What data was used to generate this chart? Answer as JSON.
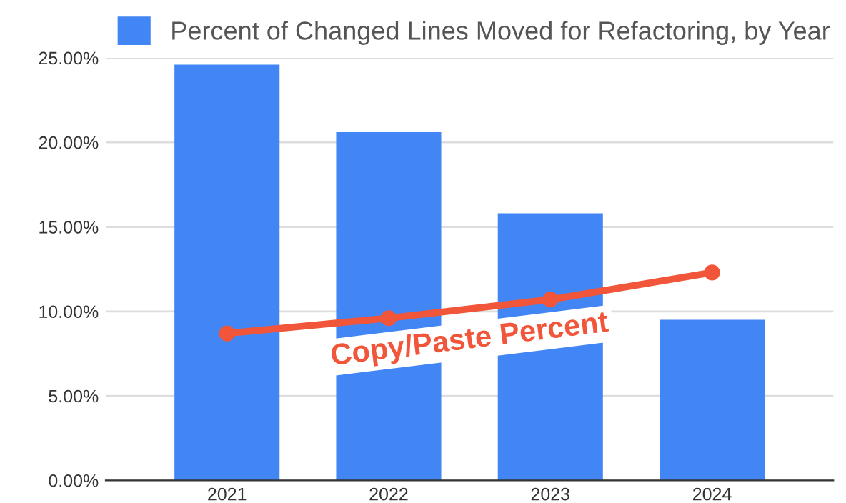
{
  "chart_data": {
    "type": "bar",
    "categories": [
      "2021",
      "2022",
      "2023",
      "2024"
    ],
    "series": [
      {
        "name": "Percent of Changed Lines Moved for Refactoring, by Year",
        "color": "#4285f4",
        "values": [
          24.6,
          20.6,
          15.8,
          9.5
        ]
      },
      {
        "name": "Copy/Paste Percent",
        "type": "line",
        "color": "#f2563a",
        "values": [
          8.7,
          9.6,
          10.7,
          12.3
        ]
      }
    ],
    "ylim": [
      0,
      25
    ],
    "yticks": [
      {
        "value": 0,
        "label": "0.00%"
      },
      {
        "value": 5,
        "label": "5.00%"
      },
      {
        "value": 10,
        "label": "10.00%"
      },
      {
        "value": 15,
        "label": "15.00%"
      },
      {
        "value": 20,
        "label": "20.00%"
      },
      {
        "value": 25,
        "label": "25.00%"
      }
    ],
    "grid": "y",
    "legend": "top left",
    "marker": "circle"
  }
}
